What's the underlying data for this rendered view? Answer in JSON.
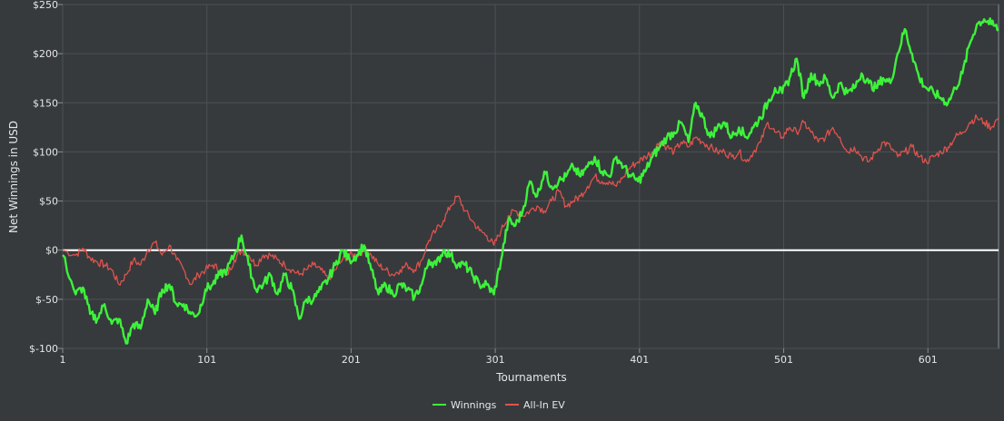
{
  "chart_data": {
    "type": "line",
    "xlabel": "Tournaments",
    "ylabel": "Net Winnings in USD",
    "xlim": [
      1,
      650
    ],
    "ylim": [
      -100,
      250
    ],
    "x_ticks": [
      1,
      101,
      201,
      301,
      401,
      501,
      601
    ],
    "x_tick_labels": [
      "1",
      "101",
      "201",
      "301",
      "401",
      "501",
      "601"
    ],
    "y_ticks": [
      -100,
      -50,
      0,
      50,
      100,
      150,
      200,
      250
    ],
    "y_tick_labels": [
      "$-100",
      "$-50",
      "$0",
      "$50",
      "$100",
      "$150",
      "$200",
      "$250"
    ],
    "grid": true,
    "legend_position": "bottom-center",
    "baseline": 0,
    "colors": {
      "background": "#363a3d",
      "grid": "#4c5154",
      "axis": "#8a8f92",
      "baseline": "#ffffff"
    },
    "series": [
      {
        "name": "Winnings",
        "color": "#3df23a",
        "x": [
          1,
          10,
          15,
          20,
          25,
          30,
          35,
          40,
          45,
          50,
          55,
          60,
          65,
          70,
          75,
          80,
          85,
          90,
          95,
          100,
          105,
          110,
          115,
          120,
          125,
          130,
          135,
          140,
          145,
          150,
          155,
          160,
          165,
          170,
          175,
          180,
          185,
          190,
          195,
          200,
          205,
          210,
          215,
          220,
          225,
          230,
          235,
          240,
          245,
          250,
          255,
          260,
          265,
          270,
          275,
          280,
          285,
          290,
          295,
          300,
          305,
          310,
          315,
          320,
          325,
          330,
          335,
          340,
          345,
          350,
          355,
          360,
          365,
          370,
          375,
          380,
          385,
          390,
          395,
          400,
          405,
          410,
          415,
          420,
          425,
          430,
          435,
          440,
          445,
          450,
          455,
          460,
          465,
          470,
          475,
          480,
          485,
          490,
          495,
          500,
          505,
          510,
          515,
          520,
          525,
          530,
          535,
          540,
          545,
          550,
          555,
          560,
          565,
          570,
          575,
          580,
          585,
          590,
          595,
          600,
          605,
          610,
          615,
          620,
          625,
          630,
          635,
          640,
          645,
          650
        ],
        "y": [
          -5,
          -45,
          -38,
          -65,
          -70,
          -55,
          -75,
          -70,
          -95,
          -75,
          -80,
          -50,
          -65,
          -40,
          -35,
          -55,
          -55,
          -65,
          -65,
          -40,
          -35,
          -25,
          -20,
          -5,
          15,
          -15,
          -40,
          -35,
          -25,
          -45,
          -25,
          -40,
          -70,
          -50,
          -50,
          -40,
          -30,
          -15,
          0,
          -10,
          -5,
          5,
          -20,
          -45,
          -35,
          -45,
          -35,
          -40,
          -48,
          -35,
          -10,
          -15,
          0,
          -5,
          -15,
          -15,
          -25,
          -35,
          -35,
          -45,
          -10,
          30,
          25,
          40,
          70,
          55,
          80,
          65,
          70,
          75,
          85,
          75,
          85,
          95,
          80,
          75,
          95,
          85,
          75,
          70,
          80,
          95,
          105,
          115,
          120,
          130,
          110,
          150,
          135,
          115,
          125,
          130,
          115,
          125,
          115,
          125,
          135,
          150,
          165,
          160,
          175,
          195,
          155,
          180,
          170,
          175,
          155,
          170,
          160,
          165,
          180,
          170,
          165,
          175,
          170,
          200,
          225,
          200,
          175,
          165,
          160,
          155,
          150,
          165,
          180,
          210,
          230,
          235,
          230,
          225
        ]
      },
      {
        "name": "All-In EV",
        "color": "#e0524d",
        "x": [
          1,
          10,
          15,
          20,
          25,
          30,
          35,
          40,
          45,
          50,
          55,
          60,
          65,
          70,
          75,
          80,
          85,
          90,
          95,
          100,
          105,
          110,
          115,
          120,
          125,
          130,
          135,
          140,
          145,
          150,
          155,
          160,
          165,
          170,
          175,
          180,
          185,
          190,
          195,
          200,
          205,
          210,
          215,
          220,
          225,
          230,
          235,
          240,
          245,
          250,
          255,
          260,
          265,
          270,
          275,
          280,
          285,
          290,
          295,
          300,
          305,
          310,
          315,
          320,
          325,
          330,
          335,
          340,
          345,
          350,
          355,
          360,
          365,
          370,
          375,
          380,
          385,
          390,
          395,
          400,
          405,
          410,
          415,
          420,
          425,
          430,
          435,
          440,
          445,
          450,
          455,
          460,
          465,
          470,
          475,
          480,
          485,
          490,
          495,
          500,
          505,
          510,
          515,
          520,
          525,
          530,
          535,
          540,
          545,
          550,
          555,
          560,
          565,
          570,
          575,
          580,
          585,
          590,
          595,
          600,
          605,
          610,
          615,
          620,
          625,
          630,
          635,
          640,
          645,
          650
        ],
        "y": [
          0,
          -5,
          2,
          -8,
          -12,
          -15,
          -20,
          -35,
          -25,
          -10,
          -15,
          0,
          8,
          -5,
          5,
          -10,
          -20,
          -35,
          -25,
          -20,
          -15,
          -20,
          -25,
          -10,
          0,
          -5,
          -15,
          -5,
          -5,
          -10,
          -15,
          -20,
          -25,
          -20,
          -15,
          -20,
          -30,
          -20,
          -10,
          -5,
          -5,
          0,
          -5,
          -15,
          -20,
          -25,
          -20,
          -15,
          -20,
          -10,
          10,
          20,
          30,
          45,
          55,
          40,
          30,
          20,
          15,
          5,
          20,
          35,
          40,
          35,
          40,
          45,
          40,
          50,
          60,
          45,
          50,
          55,
          65,
          75,
          70,
          70,
          65,
          75,
          85,
          90,
          95,
          100,
          110,
          105,
          100,
          110,
          105,
          115,
          110,
          105,
          100,
          100,
          95,
          100,
          90,
          100,
          110,
          130,
          120,
          115,
          125,
          120,
          130,
          120,
          110,
          115,
          125,
          115,
          100,
          105,
          95,
          90,
          100,
          110,
          105,
          95,
          100,
          105,
          95,
          90,
          95,
          100,
          105,
          115,
          120,
          130,
          135,
          130,
          125,
          135
        ]
      }
    ]
  }
}
